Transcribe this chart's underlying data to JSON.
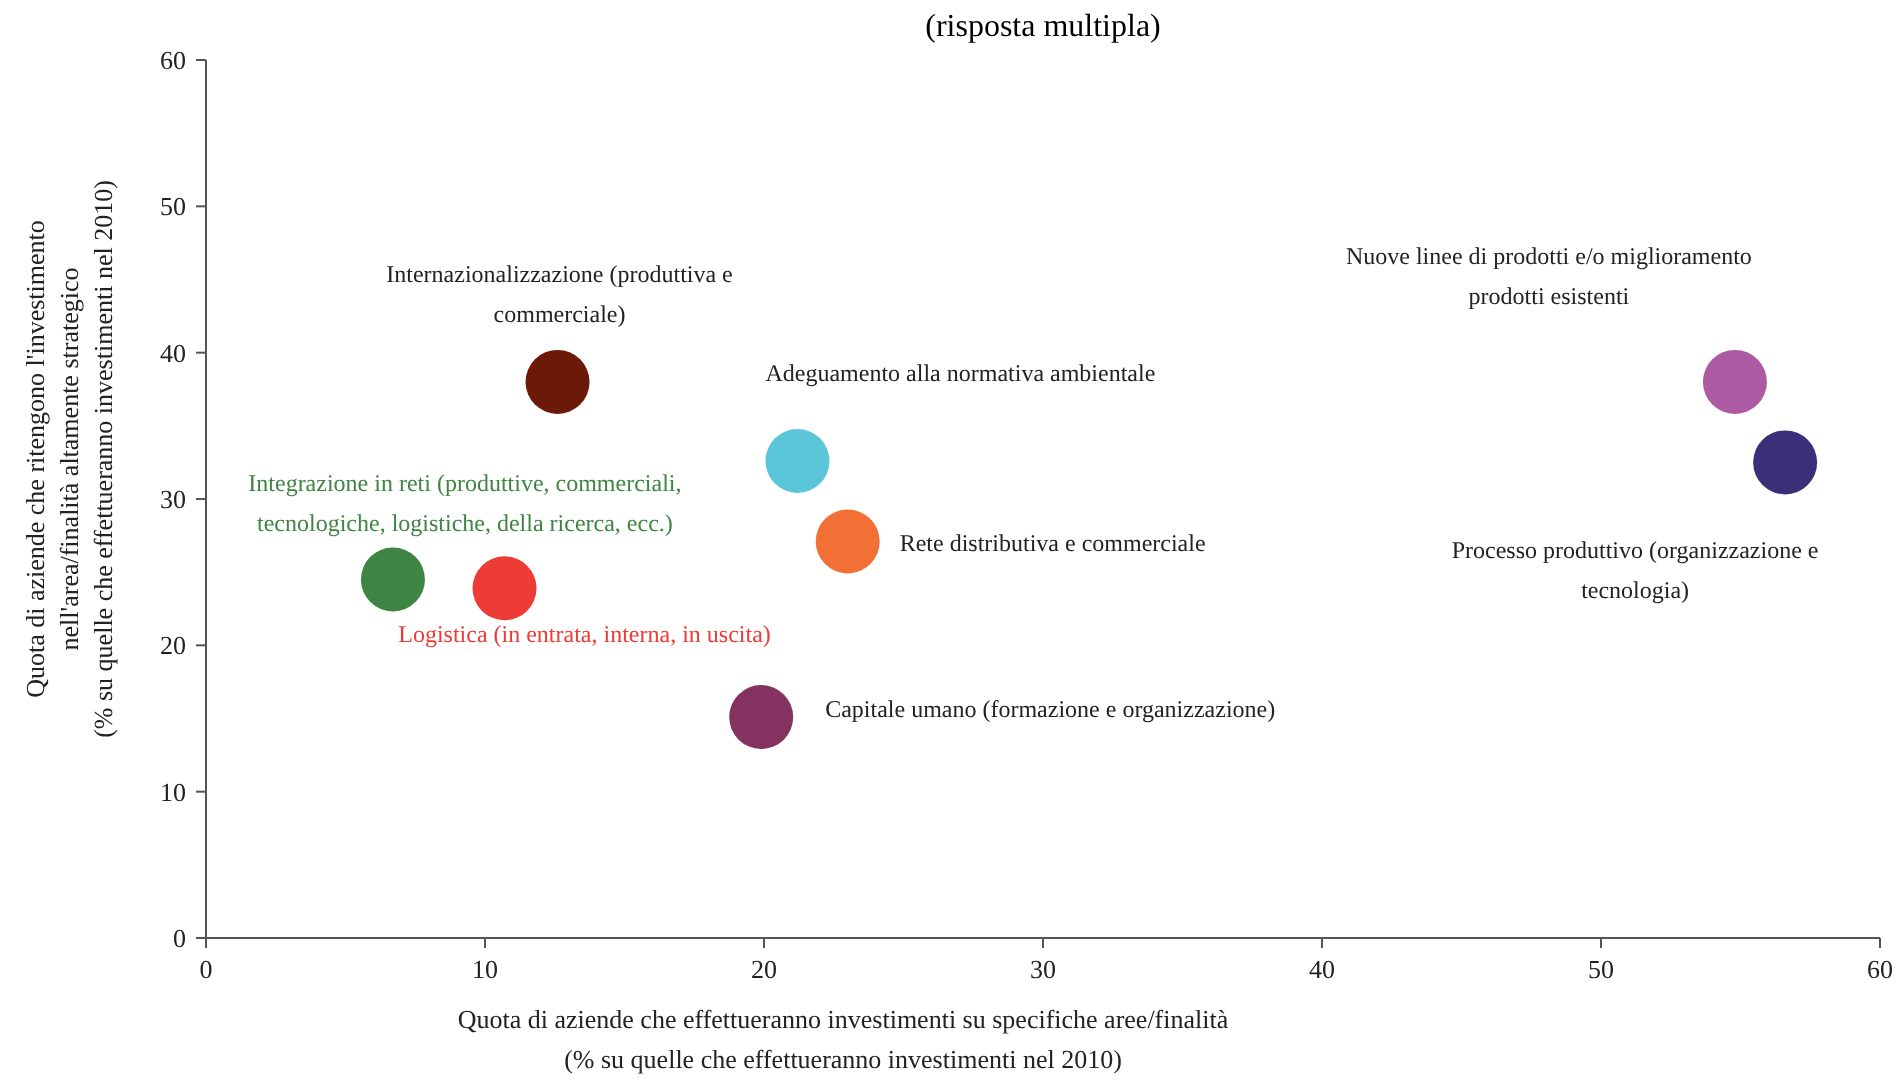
{
  "chart_data": {
    "type": "scatter",
    "title": "(risposta multipla)",
    "xlabel": "Quota di aziende che effettueranno investimenti su specifiche aree/finalità\n(% su quelle che effettueranno investimenti nel 2010)",
    "ylabel": "Quota di aziende che ritengono l'investimento\nnell'area/finalità altamente strategico\n(% su quelle che effettueranno investimenti nel 2010)",
    "xlim": [
      0,
      60
    ],
    "xticks": [
      0,
      10,
      20,
      30,
      40,
      50,
      60
    ],
    "ylim": [
      0,
      60
    ],
    "yticks": [
      0,
      10,
      20,
      30,
      40,
      50,
      60
    ],
    "marker": "circle",
    "series": [
      {
        "name": "Internazionalizzazione (produttiva e commerciale)",
        "color": "#6b1a0a",
        "x": [
          12.6
        ],
        "values": [
          38.0
        ]
      },
      {
        "name": "Adeguamento alla normativa ambientale",
        "color": "#5bc5da",
        "x": [
          21.2
        ],
        "values": [
          32.6
        ]
      },
      {
        "name": "Rete distributiva e commerciale",
        "color": "#f26f35",
        "x": [
          23.0
        ],
        "values": [
          27.1
        ]
      },
      {
        "name": "Integrazione in reti (produttive, commerciali, tecnologiche, logistiche, della ricerca, ecc.)",
        "color": "#3e8443",
        "x": [
          6.7
        ],
        "values": [
          24.5
        ]
      },
      {
        "name": "Logistica (in entrata, interna, in uscita)",
        "color": "#ef3b36",
        "x": [
          10.7
        ],
        "values": [
          23.9
        ]
      },
      {
        "name": "Capitale umano (formazione e organizzazione)",
        "color": "#84325f",
        "x": [
          19.9
        ],
        "values": [
          15.1
        ]
      },
      {
        "name": "Nuove linee di prodotti e/o miglioramento prodotti esistenti",
        "color": "#ac5aa2",
        "x": [
          54.8
        ],
        "values": [
          38.0
        ]
      },
      {
        "name": "Processo produttivo (organizzazione e tecnologia)",
        "color": "#3b2f7a",
        "x": [
          56.6
        ],
        "values": [
          32.5
        ]
      }
    ]
  }
}
